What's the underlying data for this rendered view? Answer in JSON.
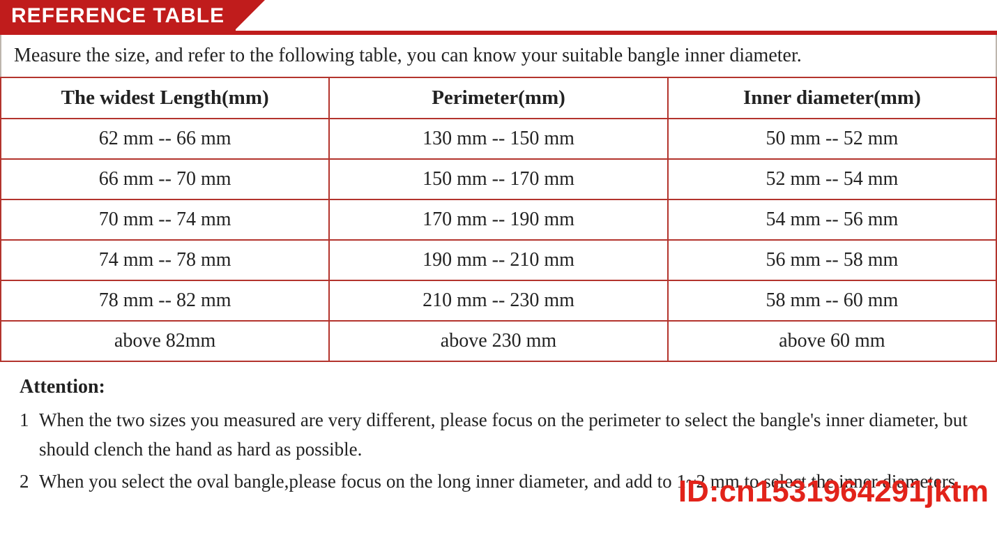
{
  "header": {
    "title": "REFERENCE TABLE",
    "band_bg": "#c01c1c",
    "band_text_color": "#ffffff"
  },
  "intro": "Measure the size, and refer to the following table, you can know your suitable bangle inner diameter.",
  "table": {
    "border_color": "#b3342d",
    "columns": [
      "The widest Length(mm)",
      "Perimeter(mm)",
      "Inner diameter(mm)"
    ],
    "rows": [
      [
        "62 mm -- 66 mm",
        "130 mm -- 150 mm",
        "50 mm -- 52 mm"
      ],
      [
        "66 mm -- 70 mm",
        "150 mm -- 170 mm",
        "52 mm -- 54 mm"
      ],
      [
        "70 mm -- 74 mm",
        "170 mm -- 190 mm",
        "54 mm -- 56 mm"
      ],
      [
        "74 mm -- 78 mm",
        "190 mm -- 210 mm",
        "56 mm -- 58 mm"
      ],
      [
        "78 mm -- 82 mm",
        "210 mm -- 230 mm",
        "58 mm -- 60 mm"
      ],
      [
        "above  82mm",
        "above  230 mm",
        "above  60 mm"
      ]
    ]
  },
  "attention": {
    "title": "Attention:",
    "items": [
      "When the two sizes you measured are very different, please focus on the perimeter to select the bangle's inner diameter, but should clench the hand as hard as possible.",
      "When you select the oval bangle,please focus on the long inner diameter, and add to 1~2 mm to select the inner diameters."
    ]
  },
  "watermark": {
    "text": "ID:cn1531964291jktm",
    "color": "#e2231a"
  },
  "style": {
    "body_font": "Times New Roman",
    "header_fontsize": 30,
    "cell_fontsize": 28,
    "intro_fontsize": 28,
    "attention_fontsize": 27,
    "background_color": "#ffffff"
  }
}
